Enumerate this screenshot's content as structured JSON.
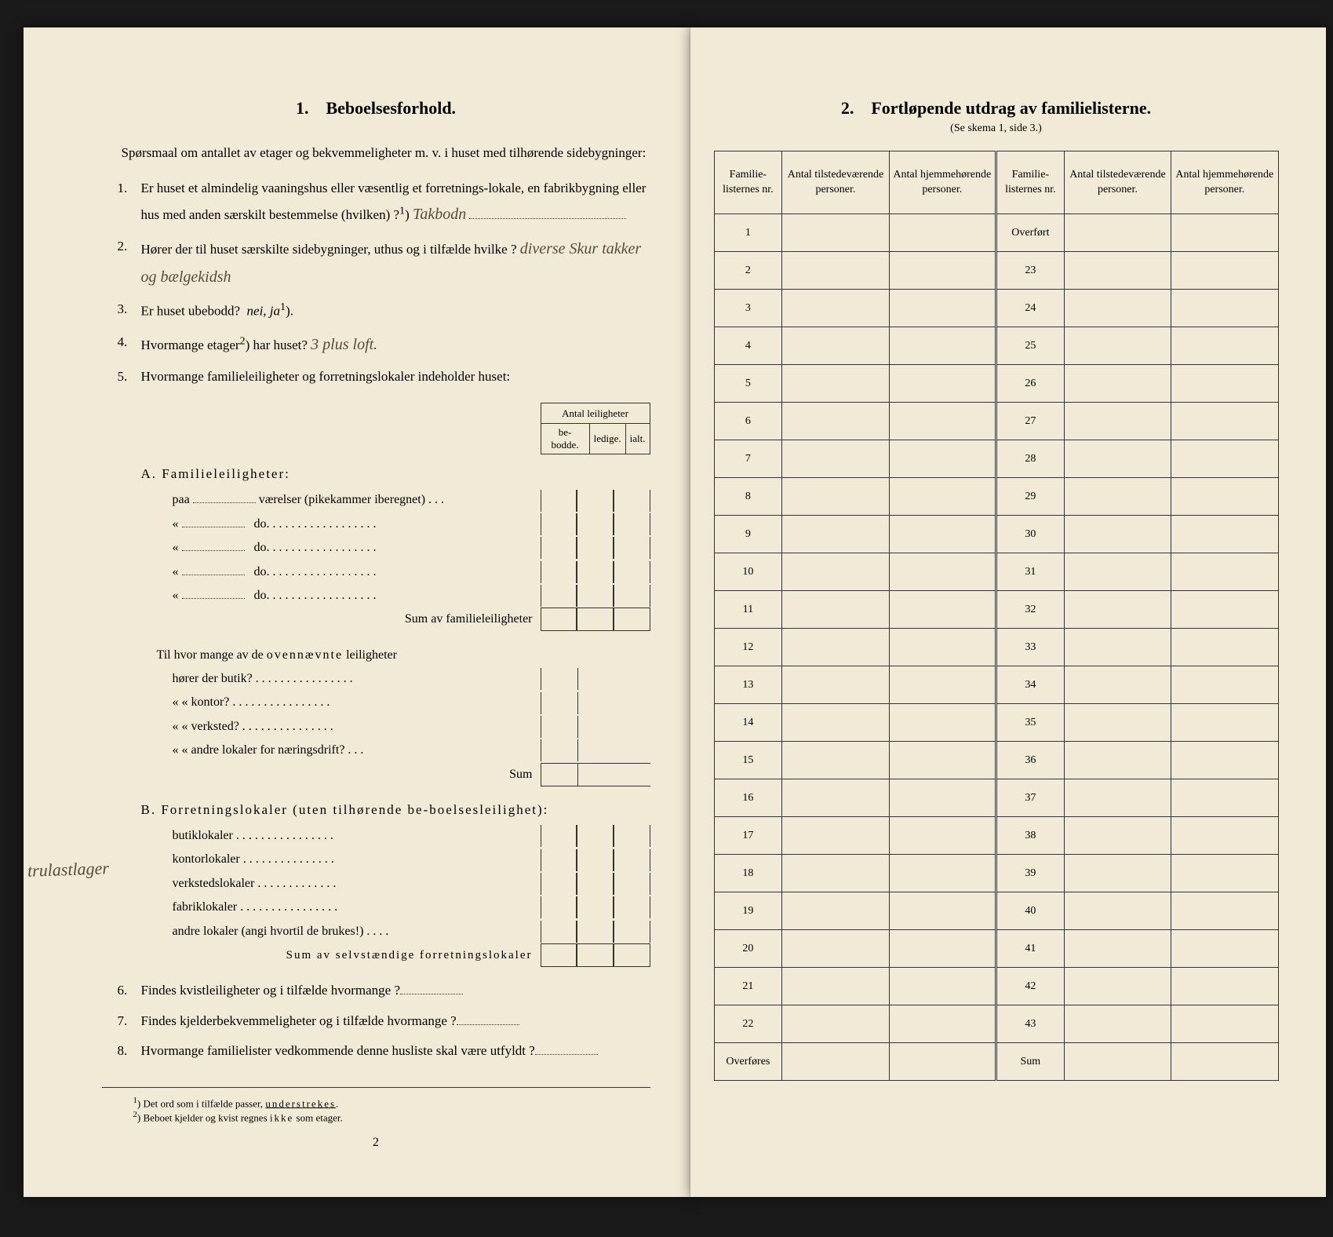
{
  "left": {
    "section_number": "1.",
    "section_title": "Beboelsesforhold.",
    "intro": "Spørsmaal om antallet av etager og bekvemmeligheter m. v. i huset med tilhørende sidebygninger:",
    "q1_num": "1.",
    "q1_text_a": "Er huset et almindelig vaaningshus eller væsentlig et forretnings-lokale, en fabrikbygning eller hus med anden særskilt bestemmelse (hvilken) ?",
    "q1_sup": "1",
    "q1_answer": "Takbodn",
    "q2_num": "2.",
    "q2_text": "Hører der til huset særskilte sidebygninger, uthus og i tilfælde hvilke ?",
    "q2_answer": "diverse Skur takker og bælgekidsh",
    "q3_num": "3.",
    "q3_text": "Er huset ubebodd?",
    "q3_options": "nei, ja",
    "q3_sup": "1",
    "q4_num": "4.",
    "q4_text": "Hvormange etager",
    "q4_sup": "2",
    "q4_text_b": ") har huset?",
    "q4_answer": "3 plus loft.",
    "q5_num": "5.",
    "q5_text": "Hvormange familieleiligheter og forretningslokaler indeholder huset:",
    "table_header": "Antal leiligheter",
    "col_bebodde": "be-bodde.",
    "col_ledige": "ledige.",
    "col_ialt": "ialt.",
    "section_a_title": "A. Familieleiligheter:",
    "line_paa": "paa",
    "line_vaerelser": "værelser (pikekammer iberegnet) . . .",
    "line_do": "do.",
    "line_do_dots": "do.   . . . . . . . . . . . . . . . . .",
    "sum_familie": "Sum av familieleiligheter",
    "til_text": "Til hvor mange av de ovennævnte leiligheter",
    "butik_q": "hører der butik? . . . . . . . . . . . . . . . .",
    "kontor_q": "«    «   kontor? . . . . . . . . . . . . . . . .",
    "verksted_q": "«    «   verksted? . . . . . . . . . . . . . . .",
    "andre_q": "«    «   andre lokaler for næringsdrift?   . . .",
    "sum_label": "Sum",
    "section_b_title": "B. Forretningslokaler (uten tilhørende be-boelsesleilighet):",
    "butiklokaler": "butiklokaler . . . . . . . . . . . . . . . .",
    "kontorlokaler": "kontorlokaler . . . . . . . . . . . . . . .",
    "verkstedslokaler": "verkstedslokaler . . . . . . . . . . . . .",
    "fabriklokaler": "fabriklokaler . . . . . . . . . . . . . . . .",
    "andre_lokaler": "andre lokaler (angi hvortil de brukes!) . . . .",
    "sum_selvst": "Sum av selvstændige forretningslokaler",
    "margin_note": "trulastlager",
    "q6_num": "6.",
    "q6_text": "Findes kvistleiligheter og i tilfælde hvormange ?",
    "q7_num": "7.",
    "q7_text": "Findes kjelderbekvemmeligheter og i tilfælde hvormange ?",
    "q8_num": "8.",
    "q8_text": "Hvormange familielister vedkommende denne husliste skal være utfyldt ?",
    "footnote1_num": "1",
    "footnote1": ") Det ord som i tilfælde passer, understrekes.",
    "footnote2_num": "2",
    "footnote2": ") Beboet kjelder og kvist regnes ikke som etager.",
    "page_number": "2"
  },
  "right": {
    "section_number": "2.",
    "section_title": "Fortløpende utdrag av familielisterne.",
    "subheader": "(Se skema 1, side 3.)",
    "col1": "Familie-listernes nr.",
    "col2": "Antal tilstedeværende personer.",
    "col3": "Antal hjemmehørende personer.",
    "col4": "Familie-listernes nr.",
    "col5": "Antal tilstedeværende personer.",
    "col6": "Antal hjemmehørende personer.",
    "overfort": "Overført",
    "overfores": "Overføres",
    "sum": "Sum",
    "rows_left": [
      "1",
      "2",
      "3",
      "4",
      "5",
      "6",
      "7",
      "8",
      "9",
      "10",
      "11",
      "12",
      "13",
      "14",
      "15",
      "16",
      "17",
      "18",
      "19",
      "20",
      "21",
      "22"
    ],
    "rows_right": [
      "23",
      "24",
      "25",
      "26",
      "27",
      "28",
      "29",
      "30",
      "31",
      "32",
      "33",
      "34",
      "35",
      "36",
      "37",
      "38",
      "39",
      "40",
      "41",
      "42",
      "43"
    ]
  }
}
